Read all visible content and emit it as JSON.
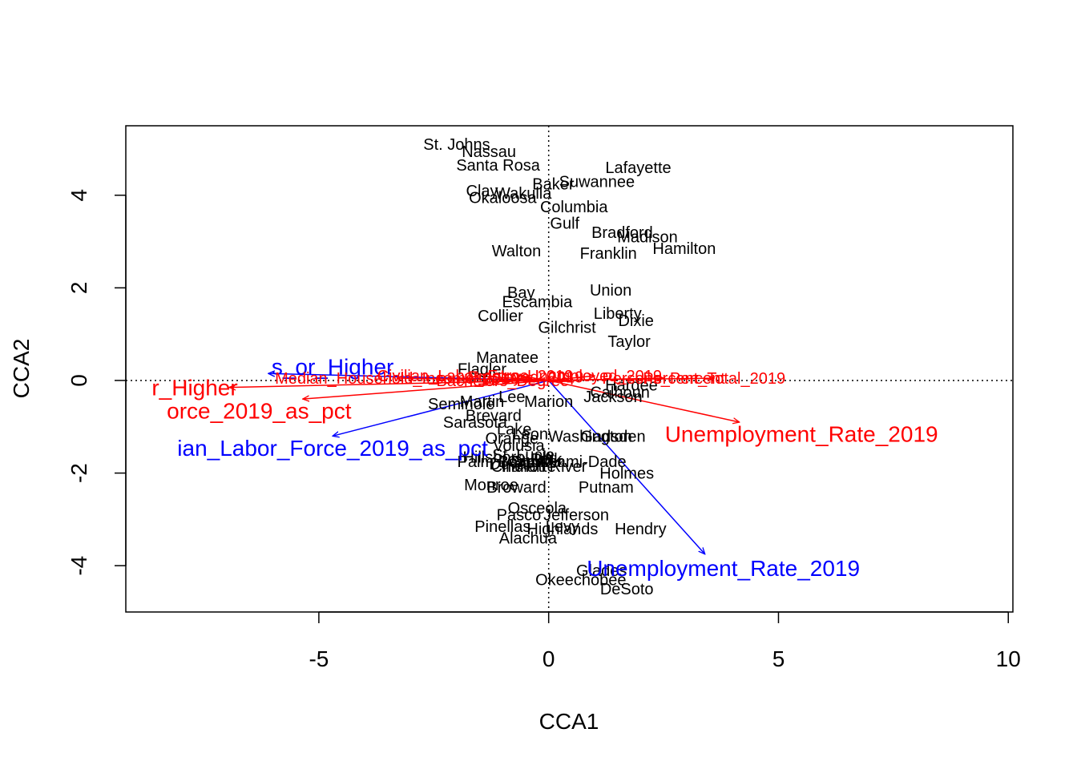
{
  "chart_data": {
    "type": "scatter",
    "subtype": "cca-triplot",
    "xlabel": "CCA1",
    "ylabel": "CCA2",
    "xlim": [
      -9.2,
      10.1
    ],
    "ylim": [
      -5.0,
      5.5
    ],
    "x_ticks": [
      -5,
      0,
      5,
      10
    ],
    "x_tick_labels": [
      "-5",
      "0",
      "5",
      "10"
    ],
    "y_ticks": [
      -4,
      -2,
      0,
      2,
      4
    ],
    "y_tick_labels": [
      "-4",
      "-2",
      "0",
      "2",
      "4"
    ],
    "reference_lines": {
      "x": 0,
      "y": 0,
      "style": "dotted"
    },
    "colors": {
      "site": "#000000",
      "blue": "#0000ff",
      "red": "#ff0000"
    },
    "sites": [
      {
        "name": "St. Johns",
        "x": -2.0,
        "y": 5.1
      },
      {
        "name": "Nassau",
        "x": -1.3,
        "y": 4.95
      },
      {
        "name": "Santa Rosa",
        "x": -1.1,
        "y": 4.65
      },
      {
        "name": "Lafayette",
        "x": 1.95,
        "y": 4.6
      },
      {
        "name": "Suwannee",
        "x": 1.05,
        "y": 4.3
      },
      {
        "name": "Baker",
        "x": 0.1,
        "y": 4.25
      },
      {
        "name": "Clay",
        "x": -1.45,
        "y": 4.1
      },
      {
        "name": "Wakulla",
        "x": -0.55,
        "y": 4.05
      },
      {
        "name": "Okaloosa",
        "x": -1.0,
        "y": 3.95
      },
      {
        "name": "Columbia",
        "x": 0.55,
        "y": 3.75
      },
      {
        "name": "Gulf",
        "x": 0.35,
        "y": 3.4
      },
      {
        "name": "Bradford",
        "x": 1.6,
        "y": 3.2
      },
      {
        "name": "Madison",
        "x": 2.15,
        "y": 3.1
      },
      {
        "name": "Walton",
        "x": -0.7,
        "y": 2.8
      },
      {
        "name": "Franklin",
        "x": 1.3,
        "y": 2.75
      },
      {
        "name": "Hamilton",
        "x": 2.95,
        "y": 2.85
      },
      {
        "name": "Bay",
        "x": -0.6,
        "y": 1.9
      },
      {
        "name": "Union",
        "x": 1.35,
        "y": 1.95
      },
      {
        "name": "Escambia",
        "x": -0.25,
        "y": 1.7
      },
      {
        "name": "Collier",
        "x": -1.05,
        "y": 1.4
      },
      {
        "name": "Liberty",
        "x": 1.5,
        "y": 1.45
      },
      {
        "name": "Dixie",
        "x": 1.9,
        "y": 1.3
      },
      {
        "name": "Gilchrist",
        "x": 0.4,
        "y": 1.15
      },
      {
        "name": "Taylor",
        "x": 1.75,
        "y": 0.85
      },
      {
        "name": "Manatee",
        "x": -0.9,
        "y": 0.5
      },
      {
        "name": "Flagler",
        "x": -1.45,
        "y": 0.25
      },
      {
        "name": "Jackson",
        "x": 1.4,
        "y": -0.35
      },
      {
        "name": "Calhoun",
        "x": 1.55,
        "y": -0.25
      },
      {
        "name": "Hardee",
        "x": 1.8,
        "y": -0.1
      },
      {
        "name": "Lee",
        "x": -0.8,
        "y": -0.35
      },
      {
        "name": "Marion",
        "x": 0.0,
        "y": -0.45
      },
      {
        "name": "Martin",
        "x": -1.45,
        "y": -0.45
      },
      {
        "name": "Seminole",
        "x": -1.9,
        "y": -0.5
      },
      {
        "name": "Brevard",
        "x": -1.2,
        "y": -0.75
      },
      {
        "name": "Sarasota",
        "x": -1.6,
        "y": -0.9
      },
      {
        "name": "Lake",
        "x": -0.75,
        "y": -1.05
      },
      {
        "name": "Leon",
        "x": -0.4,
        "y": -1.15
      },
      {
        "name": "Washington",
        "x": 0.9,
        "y": -1.2
      },
      {
        "name": "Gadsden",
        "x": 1.4,
        "y": -1.2
      },
      {
        "name": "Orange",
        "x": -0.8,
        "y": -1.25
      },
      {
        "name": "Volusia",
        "x": -0.65,
        "y": -1.4
      },
      {
        "name": "St. Lucie",
        "x": -0.55,
        "y": -1.6
      },
      {
        "name": "Polk",
        "x": -0.05,
        "y": -1.7
      },
      {
        "name": "Hillsborough",
        "x": -0.9,
        "y": -1.65
      },
      {
        "name": "Citrus",
        "x": -0.45,
        "y": -1.75
      },
      {
        "name": "Sumter",
        "x": -0.25,
        "y": -1.75
      },
      {
        "name": "Palm Beach",
        "x": -1.05,
        "y": -1.75
      },
      {
        "name": "Duval",
        "x": -0.85,
        "y": -1.8
      },
      {
        "name": "Charlotte",
        "x": -0.55,
        "y": -1.85
      },
      {
        "name": "Indian River",
        "x": -0.1,
        "y": -1.85
      },
      {
        "name": "Miami-Dade",
        "x": 0.75,
        "y": -1.75
      },
      {
        "name": "Holmes",
        "x": 1.7,
        "y": -2.0
      },
      {
        "name": "Monroe",
        "x": -1.25,
        "y": -2.25
      },
      {
        "name": "Broward",
        "x": -0.7,
        "y": -2.3
      },
      {
        "name": "Putnam",
        "x": 1.25,
        "y": -2.3
      },
      {
        "name": "Osceola",
        "x": -0.25,
        "y": -2.75
      },
      {
        "name": "Jefferson",
        "x": 0.6,
        "y": -2.9
      },
      {
        "name": "Pasco",
        "x": -0.65,
        "y": -2.9
      },
      {
        "name": "Levy",
        "x": 0.3,
        "y": -3.15
      },
      {
        "name": "Pinellas",
        "x": -1.0,
        "y": -3.15
      },
      {
        "name": "Highlands",
        "x": 0.3,
        "y": -3.2
      },
      {
        "name": "Hendry",
        "x": 2.0,
        "y": -3.2
      },
      {
        "name": "Alachua",
        "x": -0.45,
        "y": -3.4
      },
      {
        "name": "Glades",
        "x": 1.15,
        "y": -4.1
      },
      {
        "name": "Okeechobee",
        "x": 0.7,
        "y": -4.3
      },
      {
        "name": "DeSoto",
        "x": 1.7,
        "y": -4.5
      }
    ],
    "series": [
      {
        "color": "#0000ff",
        "arrows": [
          {
            "name": "s_or_Higher",
            "x": -6.1,
            "y": 0.15,
            "label_x": -4.7,
            "label_y": 0.3,
            "font": "big"
          },
          {
            "name": "ian_Labor_Force_2019_as_pct",
            "x": -4.7,
            "y": -1.2,
            "label_x": -4.7,
            "label_y": -1.45,
            "font": "big"
          },
          {
            "name": "Unemployment_Rate_2019",
            "x": 3.4,
            "y": -3.75,
            "label_x": 3.8,
            "label_y": -4.05,
            "font": "big"
          }
        ]
      },
      {
        "color": "#ff0000",
        "arrows": [
          {
            "name": "r_Higher",
            "x": -6.95,
            "y": -0.15,
            "label_x": -7.7,
            "label_y": -0.15,
            "font": "big"
          },
          {
            "name": "orce_2019_as_pct",
            "x": -5.35,
            "y": -0.4,
            "label_x": -6.3,
            "label_y": -0.65,
            "font": "big"
          },
          {
            "name": "Unemployment_Rate_2019",
            "x": 4.15,
            "y": -0.9,
            "label_x": 5.5,
            "label_y": -1.15,
            "font": "big"
          },
          {
            "name": "Median_Household_Income_2019",
            "x": -3.3,
            "y": 0.05,
            "label_x": -3.3,
            "label_y": 0.05,
            "font": "small"
          },
          {
            "name": "Civilian_Labor_Force_2019",
            "x": -1.6,
            "y": 0.1,
            "label_x": -1.6,
            "label_y": 0.1,
            "font": "small"
          },
          {
            "name": "Employed_2019",
            "x": -0.5,
            "y": 0.08,
            "label_x": -0.5,
            "label_y": 0.08,
            "font": "small"
          },
          {
            "name": "Bachelors_Degree",
            "x": -1.0,
            "y": 0.0,
            "label_x": -1.0,
            "label_y": 0.0,
            "font": "small"
          },
          {
            "name": "Percent_Total_2019",
            "x": 3.6,
            "y": 0.05,
            "label_x": 3.6,
            "label_y": 0.05,
            "font": "small"
          },
          {
            "name": "Unemployed_2019",
            "x": 1.0,
            "y": 0.1,
            "label_x": 1.0,
            "label_y": 0.1,
            "font": "small"
          },
          {
            "name": "Persons_Percent",
            "x": 2.5,
            "y": 0.05,
            "label_x": 2.5,
            "label_y": 0.05,
            "font": "small"
          }
        ]
      }
    ],
    "grid": false,
    "legend": "none"
  }
}
